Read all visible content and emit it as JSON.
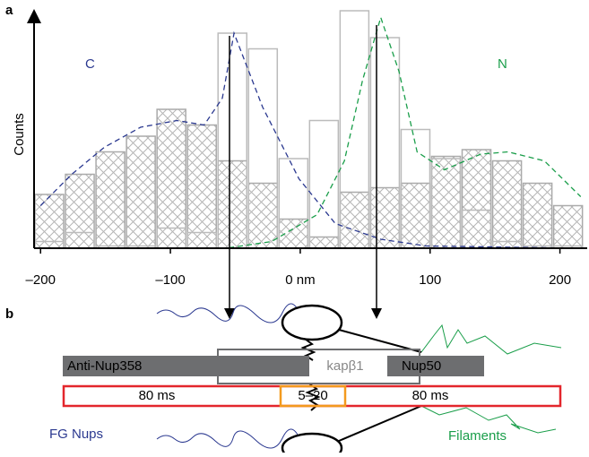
{
  "chart_data": {
    "type": "histogram",
    "panel_label": "a",
    "y_label": "Counts",
    "bins": [
      -205,
      -181.5,
      -158,
      -134.5,
      -111,
      -87.5,
      -64,
      -40.5,
      -17,
      6.5,
      30,
      53.5,
      77,
      100.5,
      124,
      147.5,
      171,
      194.5,
      218
    ],
    "series": [
      {
        "color": "#aaaaaa",
        "hatched": true,
        "values": [
          24,
          33,
          43,
          50,
          62,
          55,
          39,
          29,
          13,
          5,
          25,
          27,
          29,
          41,
          44,
          39,
          29,
          19
        ]
      },
      {
        "color": "#bbbbbb",
        "hatched": false,
        "values": [
          3,
          7,
          1,
          1,
          9,
          7,
          96,
          89,
          40,
          57,
          106,
          94,
          53,
          40,
          17,
          3,
          1,
          1
        ]
      }
    ],
    "fits": [
      {
        "name": "C",
        "color": "#2b3990",
        "x": [
          -200,
          -176,
          -151,
          -123,
          -95,
          -74,
          -60,
          -51,
          -29,
          -1,
          27,
          62,
          97,
          216
        ],
        "values": [
          19,
          33,
          45,
          54,
          57,
          55,
          67,
          96,
          63,
          31,
          11,
          4,
          1,
          0
        ]
      },
      {
        "name": "N",
        "color": "#1a9e4a",
        "x": [
          -200,
          -57,
          -22,
          13,
          34,
          48,
          62,
          76,
          90,
          111,
          139,
          160,
          188,
          216
        ],
        "values": [
          0,
          0,
          3,
          15,
          39,
          75,
          103,
          79,
          43,
          35,
          42,
          43,
          39,
          23
        ]
      }
    ],
    "xlim": [
      -205,
      221
    ],
    "ylim": [
      0,
      105
    ],
    "xticks": [
      {
        "value": -200,
        "label": "–200"
      },
      {
        "value": -100,
        "label": "–100"
      },
      {
        "value": 0,
        "label": "0 nm"
      },
      100,
      200
    ]
  },
  "diagram": {
    "panel_label": "b",
    "bars": {
      "left": "Anti-Nup358",
      "middle": "kapβ1",
      "right": "Nup50"
    },
    "timing": {
      "left": "80 ms",
      "middle": "5–20",
      "right": "80 ms"
    },
    "labels": {
      "fg": "FG Nups",
      "filaments": "Filaments"
    }
  }
}
